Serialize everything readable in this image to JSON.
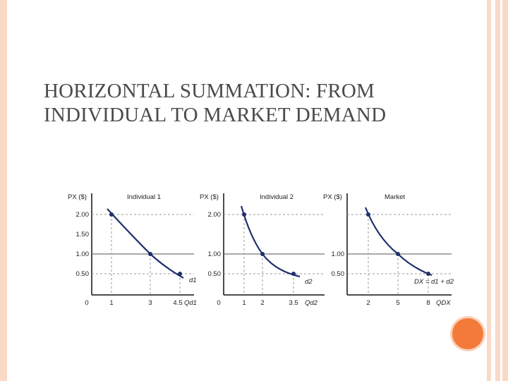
{
  "slide": {
    "title_line1": "HORIZONTAL SUMMATION: FROM",
    "title_line2": "INDIVIDUAL TO MARKET DEMAND"
  },
  "panels": [
    {
      "heading": "Individual 1",
      "y_axis_label": "PX ($)",
      "y_ticks": [
        "2.00",
        "1.50",
        "1.00",
        "0.50"
      ],
      "x_ticks": [
        "0",
        "1",
        "3",
        "4.5"
      ],
      "x_axis_label": "Qd1",
      "curve_label": "d1",
      "points": [
        {
          "q": 1,
          "p": 2.0
        },
        {
          "q": 3,
          "p": 1.0
        },
        {
          "q": 4.5,
          "p": 0.5
        }
      ]
    },
    {
      "heading": "Individual 2",
      "y_axis_label": "PX ($)",
      "y_ticks": [
        "2.00",
        "1.00",
        "0.50"
      ],
      "x_ticks": [
        "0",
        "1",
        "2",
        "3.5"
      ],
      "x_axis_label": "Qd2",
      "curve_label": "d2",
      "points": [
        {
          "q": 1,
          "p": 2.0
        },
        {
          "q": 2,
          "p": 1.0
        },
        {
          "q": 3.5,
          "p": 0.5
        }
      ]
    },
    {
      "heading": "Market",
      "y_axis_label": "PX ($)",
      "y_ticks": [
        "1.00",
        "0.50"
      ],
      "x_ticks": [
        "2",
        "5",
        "8"
      ],
      "x_axis_label": "QDX",
      "curve_label": "DX = d1 + d2",
      "points": [
        {
          "q": 2,
          "p": 2.0
        },
        {
          "q": 5,
          "p": 1.0
        },
        {
          "q": 8,
          "p": 0.5
        }
      ]
    }
  ],
  "colors": {
    "frame": "#fbd9c7",
    "accent_circle": "#f47a3a",
    "curve": "#1f2f6b",
    "title": "#4a4a4a"
  }
}
